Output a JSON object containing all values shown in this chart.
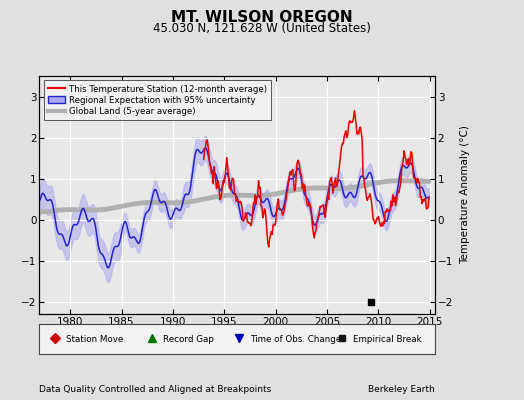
{
  "title": "MT. WILSON OREGON",
  "subtitle": "45.030 N, 121.628 W (United States)",
  "xlabel_left": "Data Quality Controlled and Aligned at Breakpoints",
  "xlabel_right": "Berkeley Earth",
  "ylabel": "Temperature Anomaly (°C)",
  "xlim": [
    1977.0,
    2015.5
  ],
  "ylim": [
    -2.3,
    3.5
  ],
  "yticks": [
    -2,
    -1,
    0,
    1,
    2,
    3
  ],
  "xticks": [
    1980,
    1985,
    1990,
    1995,
    2000,
    2005,
    2010,
    2015
  ],
  "bg_color": "#e0e0e0",
  "plot_bg_color": "#e8e8e8",
  "grid_color": "#ffffff",
  "empirical_break_year": 2009.3,
  "empirical_break_value": -2.0,
  "red_line_color": "#ee0000",
  "blue_line_color": "#2222cc",
  "blue_band_color": "#aaaaee",
  "gray_line_color": "#b0b0b0"
}
